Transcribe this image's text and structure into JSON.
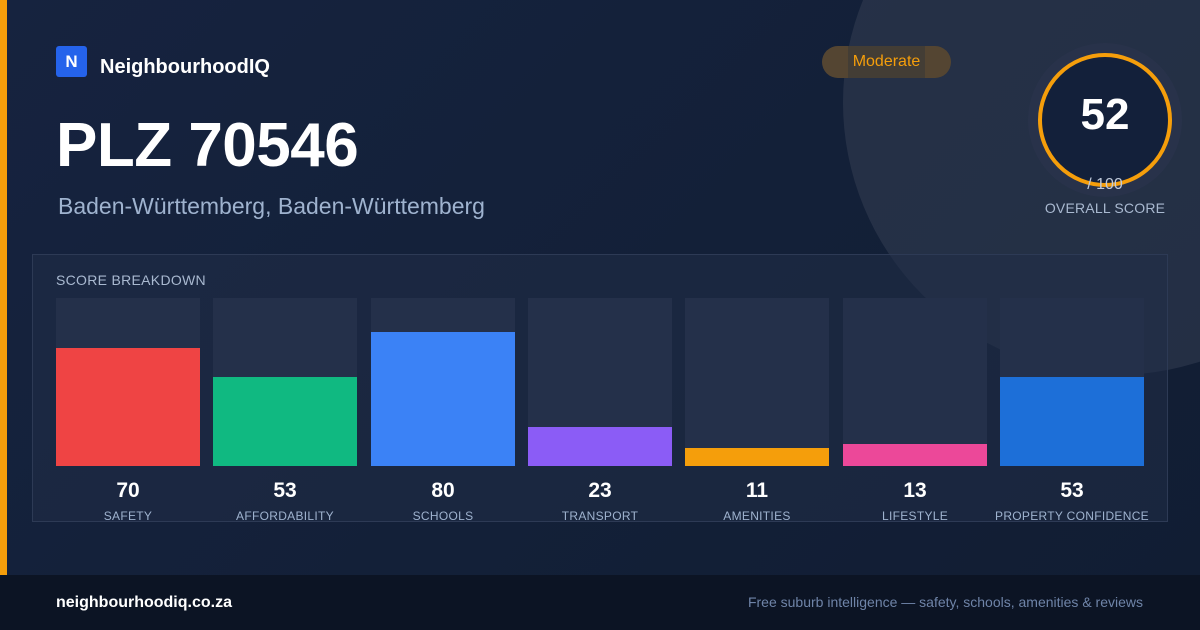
{
  "brand": {
    "logo_letter": "N",
    "name": "NeighbourhoodIQ"
  },
  "title": "PLZ 70546",
  "subtitle": "Baden-Württemberg, Baden-Württemberg",
  "badge": {
    "label": "Moderate",
    "color": "#f59e0b"
  },
  "overall": {
    "score": "52",
    "out_of": "/ 100",
    "label": "OVERALL SCORE",
    "ring_color": "#f59e0b"
  },
  "breakdown": {
    "title": "SCORE BREAKDOWN",
    "scale_max": 100,
    "items": [
      {
        "value": 70,
        "label": "SAFETY",
        "color": "#ef4444"
      },
      {
        "value": 53,
        "label": "AFFORDABILITY",
        "color": "#10b981"
      },
      {
        "value": 80,
        "label": "SCHOOLS",
        "color": "#3b82f6"
      },
      {
        "value": 23,
        "label": "TRANSPORT",
        "color": "#8b5cf6"
      },
      {
        "value": 11,
        "label": "AMENITIES",
        "color": "#f59e0b"
      },
      {
        "value": 13,
        "label": "LIFESTYLE",
        "color": "#ec4899"
      },
      {
        "value": 53,
        "label": "PROPERTY CONFIDENCE",
        "color": "#1d6fd8"
      }
    ]
  },
  "footer": {
    "url": "neighbourhoodiq.co.za",
    "tagline": "Free suburb intelligence — safety, schools, amenities & reviews"
  }
}
